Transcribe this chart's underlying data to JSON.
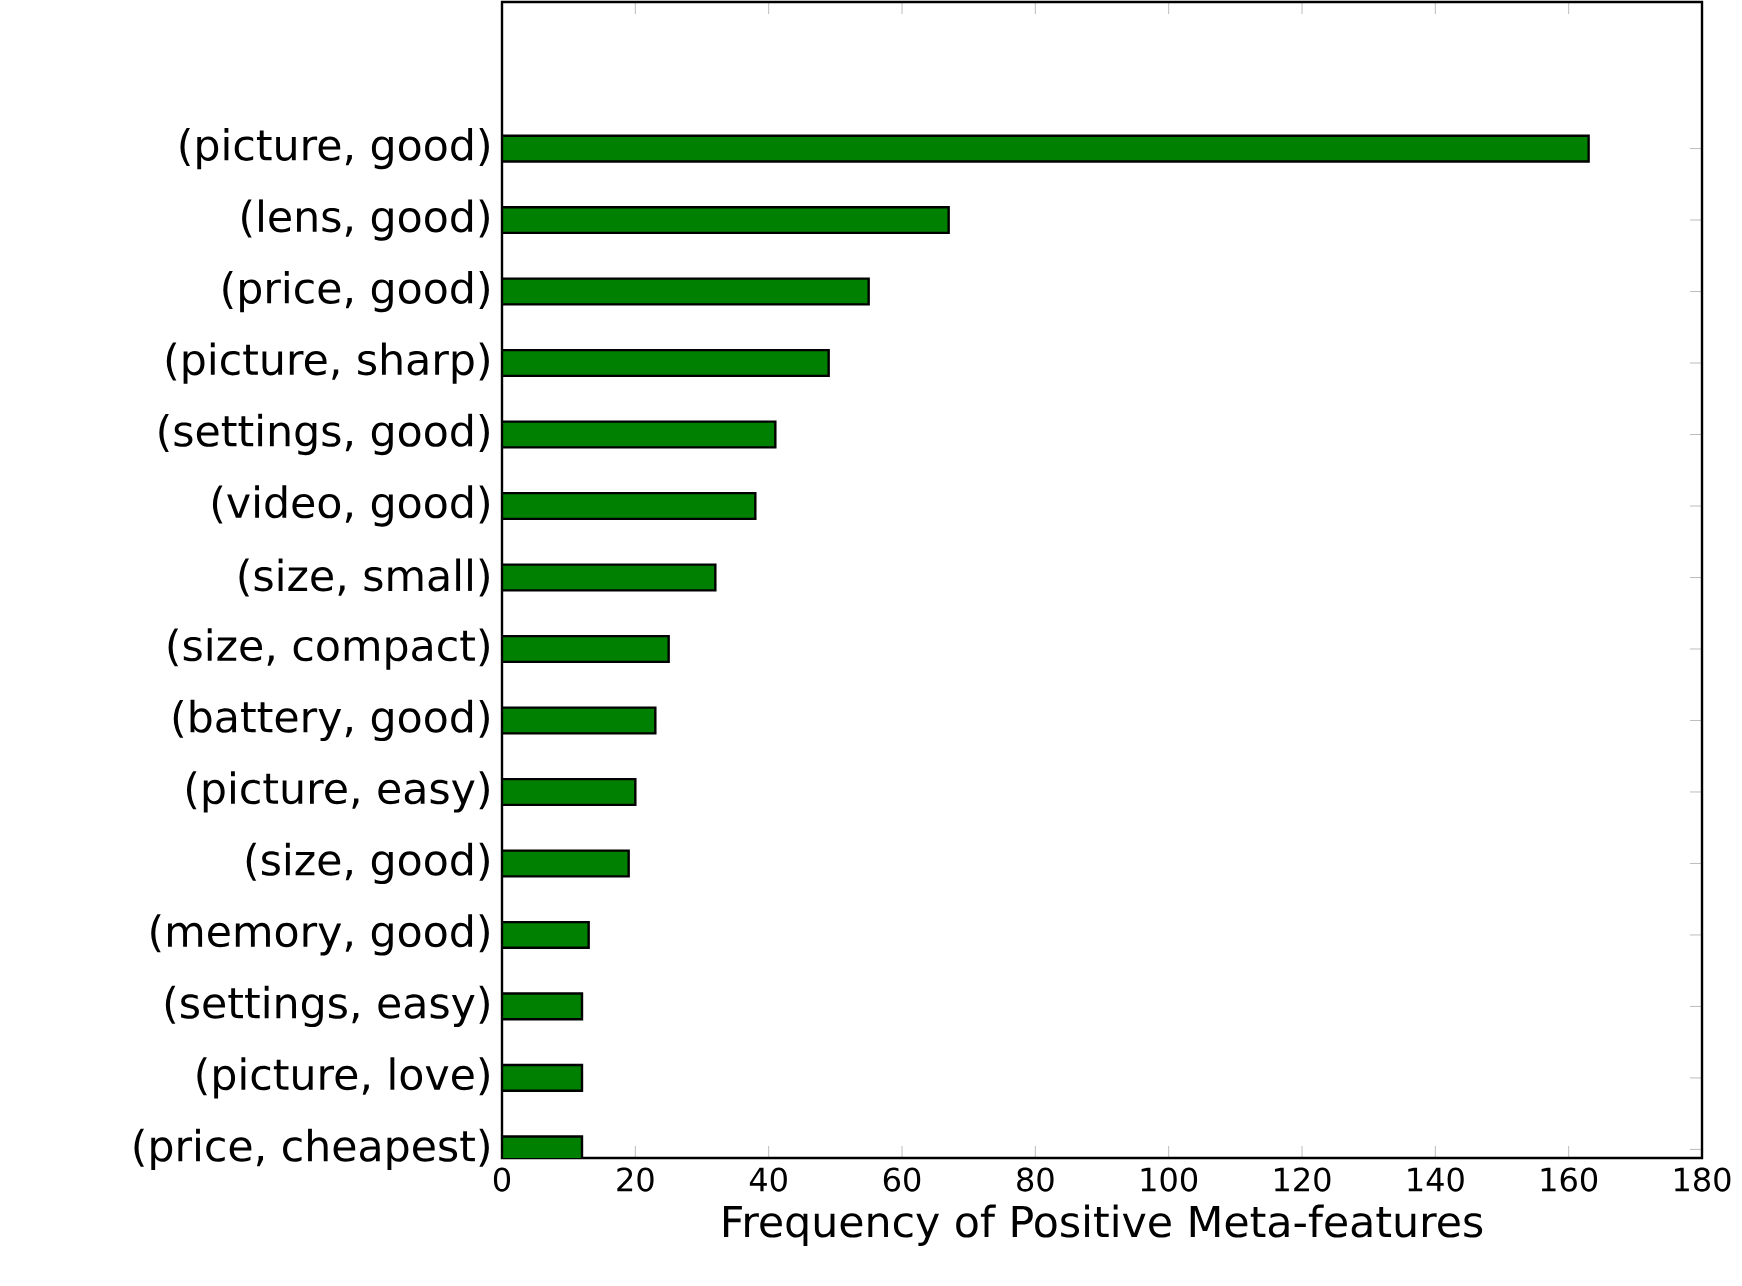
{
  "chart_data": {
    "type": "bar",
    "orientation": "horizontal",
    "xlabel": "Frequency of Positive Meta-features",
    "categories": [
      "(picture, good)",
      "(lens, good)",
      "(price, good)",
      "(picture, sharp)",
      "(settings, good)",
      "(video, good)",
      "(size, small)",
      "(size, compact)",
      "(battery, good)",
      "(picture, easy)",
      "(size, good)",
      "(memory, good)",
      "(settings, easy)",
      "(picture, love)",
      "(price, cheapest)"
    ],
    "values": [
      163,
      67,
      55,
      49,
      41,
      38,
      32,
      25,
      23,
      20,
      19,
      13,
      12,
      12,
      12
    ],
    "color": "#008000",
    "xlim": [
      0,
      180
    ],
    "xticks": [
      0,
      20,
      40,
      60,
      80,
      100,
      120,
      140,
      160,
      180
    ]
  }
}
